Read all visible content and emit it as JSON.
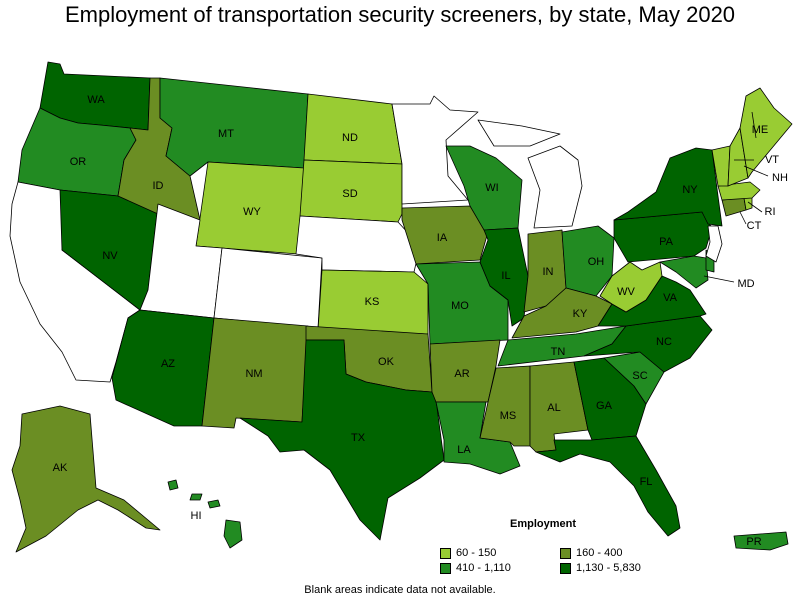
{
  "title": "Employment of transportation security screeners, by state, May 2020",
  "note": "Blank areas indicate data not available.",
  "legend": {
    "title": "Employment",
    "items": [
      {
        "label": "60 - 150",
        "color": "#99cc33"
      },
      {
        "label": "160 - 400",
        "color": "#6b8e23"
      },
      {
        "label": "410 - 1,110",
        "color": "#228b22"
      },
      {
        "label": "1,130 - 5,830",
        "color": "#006400"
      }
    ]
  },
  "states": {
    "WA": {
      "label": "WA",
      "bin": 3
    },
    "OR": {
      "label": "OR",
      "bin": 2
    },
    "CA": {
      "label": "",
      "bin": null
    },
    "NV": {
      "label": "NV",
      "bin": 3
    },
    "ID": {
      "label": "ID",
      "bin": 1
    },
    "MT": {
      "label": "MT",
      "bin": 2
    },
    "WY": {
      "label": "WY",
      "bin": 0
    },
    "UT": {
      "label": "",
      "bin": null
    },
    "CO": {
      "label": "",
      "bin": null
    },
    "AZ": {
      "label": "AZ",
      "bin": 3
    },
    "NM": {
      "label": "NM",
      "bin": 1
    },
    "ND": {
      "label": "ND",
      "bin": 0
    },
    "SD": {
      "label": "SD",
      "bin": 0
    },
    "NE": {
      "label": "",
      "bin": null
    },
    "KS": {
      "label": "KS",
      "bin": 0
    },
    "OK": {
      "label": "OK",
      "bin": 1
    },
    "TX": {
      "label": "TX",
      "bin": 3
    },
    "MN": {
      "label": "",
      "bin": null
    },
    "IA": {
      "label": "IA",
      "bin": 1
    },
    "MO": {
      "label": "MO",
      "bin": 2
    },
    "AR": {
      "label": "AR",
      "bin": 1
    },
    "LA": {
      "label": "LA",
      "bin": 2
    },
    "WI": {
      "label": "WI",
      "bin": 2
    },
    "IL": {
      "label": "IL",
      "bin": 3
    },
    "MI": {
      "label": "",
      "bin": null
    },
    "IN": {
      "label": "IN",
      "bin": 1
    },
    "OH": {
      "label": "OH",
      "bin": 2
    },
    "KY": {
      "label": "KY",
      "bin": 1
    },
    "TN": {
      "label": "TN",
      "bin": 2
    },
    "MS": {
      "label": "MS",
      "bin": 1
    },
    "AL": {
      "label": "AL",
      "bin": 1
    },
    "GA": {
      "label": "GA",
      "bin": 3
    },
    "FL": {
      "label": "FL",
      "bin": 3
    },
    "SC": {
      "label": "SC",
      "bin": 2
    },
    "NC": {
      "label": "NC",
      "bin": 3
    },
    "VA": {
      "label": "VA",
      "bin": 3
    },
    "WV": {
      "label": "WV",
      "bin": 0
    },
    "PA": {
      "label": "PA",
      "bin": 3
    },
    "NY": {
      "label": "NY",
      "bin": 3
    },
    "MD": {
      "label": "MD",
      "bin": 2
    },
    "DE": {
      "label": "",
      "bin": 2
    },
    "NJ": {
      "label": "",
      "bin": null
    },
    "CT": {
      "label": "CT",
      "bin": 1
    },
    "RI": {
      "label": "RI",
      "bin": 0
    },
    "MA": {
      "label": "",
      "bin": 0
    },
    "VT": {
      "label": "VT",
      "bin": 0
    },
    "NH": {
      "label": "NH",
      "bin": 0
    },
    "ME": {
      "label": "ME",
      "bin": 0
    },
    "AK": {
      "label": "AK",
      "bin": 1
    },
    "HI": {
      "label": "HI",
      "bin": 2
    },
    "PR": {
      "label": "PR",
      "bin": 2
    }
  }
}
